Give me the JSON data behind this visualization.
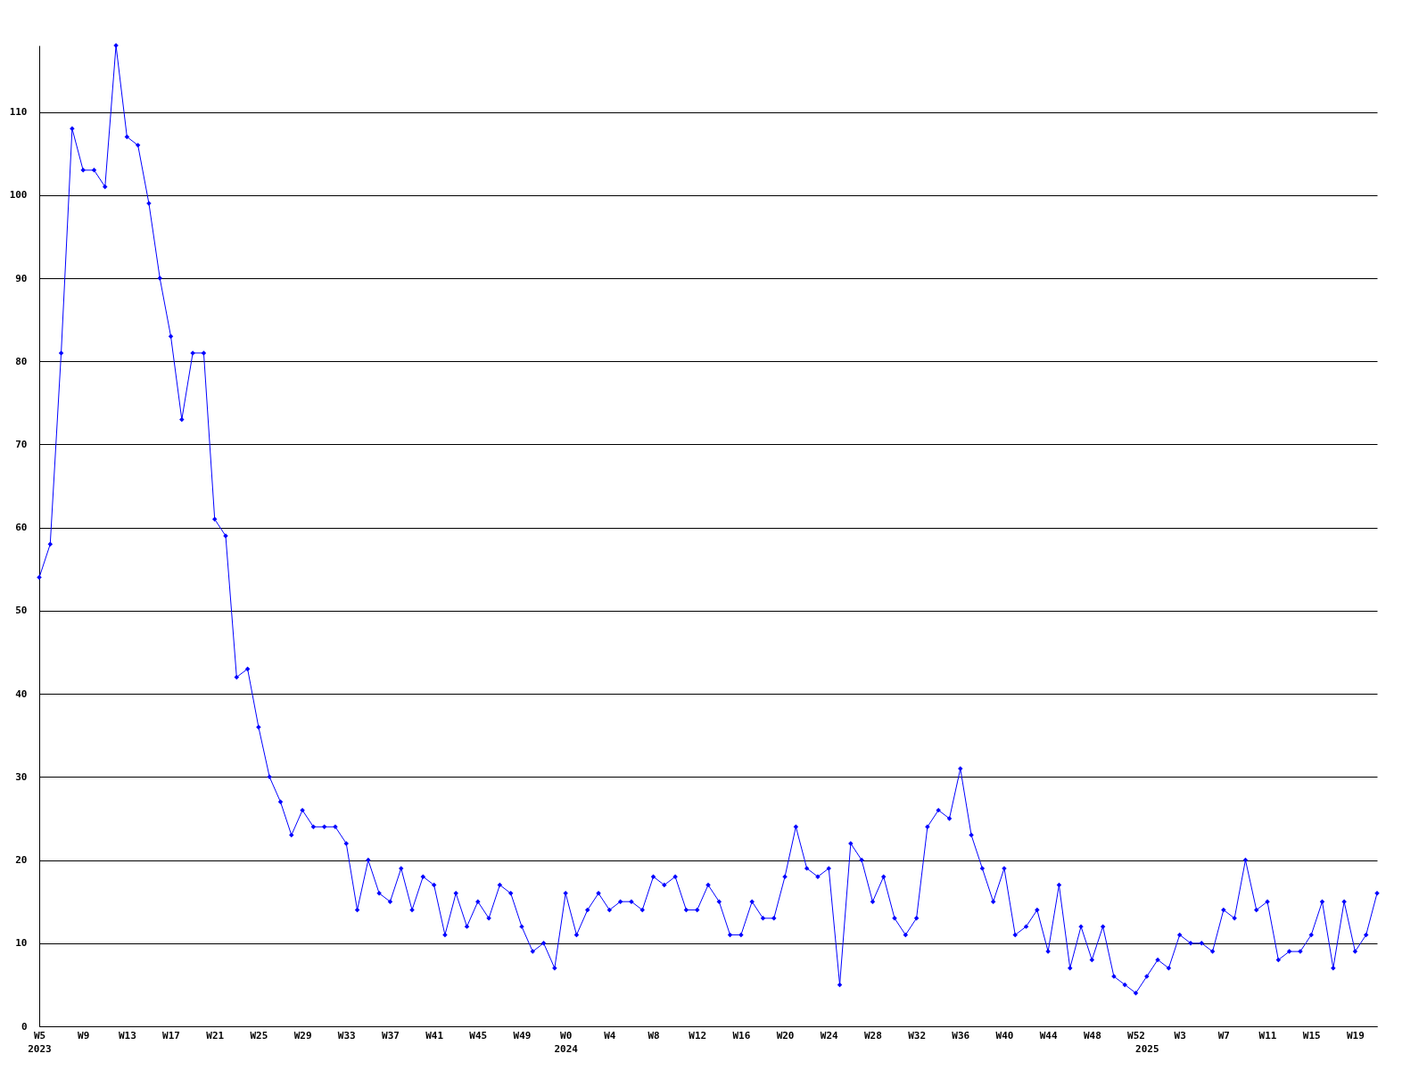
{
  "chart_data": {
    "type": "line",
    "categories": [
      "W5\n2023",
      null,
      null,
      null,
      "W9",
      null,
      null,
      null,
      "W13",
      null,
      null,
      null,
      "W17",
      null,
      null,
      null,
      "W21",
      null,
      null,
      null,
      "W25",
      null,
      null,
      null,
      "W29",
      null,
      null,
      null,
      "W33",
      null,
      null,
      null,
      "W37",
      null,
      null,
      null,
      "W41",
      null,
      null,
      null,
      "W45",
      null,
      null,
      null,
      "W49",
      null,
      null,
      null,
      "W0\n2024",
      null,
      null,
      null,
      "W4",
      null,
      null,
      null,
      "W8",
      null,
      null,
      null,
      "W12",
      null,
      null,
      null,
      "W16",
      null,
      null,
      null,
      "W20",
      null,
      null,
      null,
      "W24",
      null,
      null,
      null,
      "W28",
      null,
      null,
      null,
      "W32",
      null,
      null,
      null,
      "W36",
      null,
      null,
      null,
      "W40",
      null,
      null,
      null,
      "W44",
      null,
      null,
      null,
      "W48",
      null,
      null,
      null,
      "W52",
      "\n2025",
      null,
      null,
      "W3",
      null,
      null,
      null,
      "W7",
      null,
      null,
      null,
      "W11",
      null,
      null,
      null,
      "W15",
      null,
      null,
      null,
      "W19",
      null,
      null
    ],
    "series": [
      {
        "color": "#0000ff",
        "values": [
          54,
          58,
          81,
          108,
          103,
          103,
          101,
          118,
          107,
          106,
          99,
          90,
          83,
          73,
          81,
          81,
          61,
          59,
          42,
          43,
          36,
          30,
          27,
          23,
          26,
          24,
          24,
          24,
          22,
          14,
          20,
          16,
          15,
          19,
          14,
          18,
          17,
          11,
          16,
          12,
          15,
          13,
          17,
          16,
          12,
          9,
          10,
          7,
          16,
          11,
          14,
          16,
          14,
          15,
          15,
          14,
          18,
          17,
          18,
          14,
          14,
          17,
          15,
          11,
          11,
          15,
          13,
          13,
          18,
          24,
          19,
          18,
          19,
          5,
          22,
          20,
          15,
          18,
          13,
          11,
          13,
          24,
          26,
          25,
          31,
          23,
          19,
          15,
          19,
          11,
          12,
          14,
          9,
          17,
          7,
          12,
          8,
          12,
          6,
          5,
          4,
          6,
          8,
          7,
          11,
          10,
          10,
          9,
          14,
          13,
          20,
          14,
          15,
          8,
          9,
          9,
          11,
          15,
          7,
          15,
          9,
          11,
          16
        ]
      }
    ],
    "ylim": [
      0,
      118
    ],
    "yticks": [
      0,
      10,
      20,
      30,
      40,
      50,
      60,
      70,
      80,
      90,
      100,
      110
    ],
    "grid": "y",
    "legend": false,
    "marker": "diamond",
    "line_style": "solid"
  }
}
